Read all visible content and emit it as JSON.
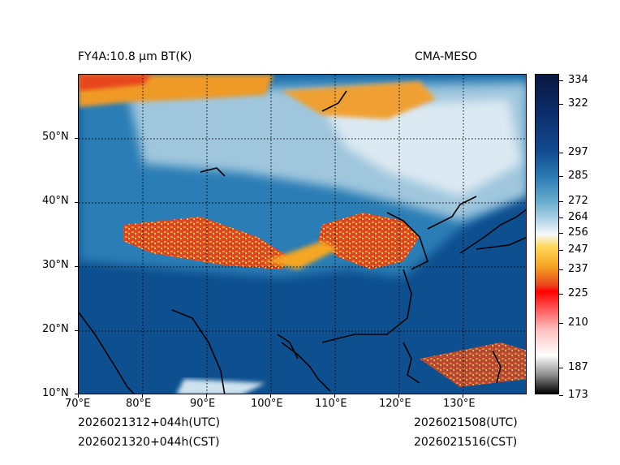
{
  "header": {
    "title_left": "FY4A:10.8 µm BT(K)",
    "title_right": "CMA-MESO"
  },
  "footer": {
    "init_utc": "2026021312+044h(UTC)",
    "init_cst": "2026021320+044h(CST)",
    "valid_utc": "2026021508(UTC)",
    "valid_cst": "2026021516(CST)"
  },
  "chart_data": {
    "type": "heatmap",
    "title": "FY4A:10.8 µm BT(K)",
    "x_axis": {
      "label": "",
      "range": [
        70,
        140
      ],
      "unit": "degE",
      "ticks": [
        "70°E",
        "80°E",
        "90°E",
        "100°E",
        "110°E",
        "120°E",
        "130°E"
      ]
    },
    "y_axis": {
      "label": "",
      "range": [
        10,
        60
      ],
      "unit": "degN",
      "ticks": [
        "10°N",
        "20°N",
        "30°N",
        "40°N",
        "50°N"
      ]
    },
    "grid": true,
    "colorbar": {
      "unit": "K",
      "range": [
        173,
        340
      ],
      "ticks": [
        "173",
        "187",
        "210",
        "225",
        "237",
        "247",
        "256",
        "264",
        "272",
        "285",
        "297",
        "322",
        "334"
      ]
    }
  },
  "colors": {
    "ocean": "#0c4a8a",
    "land_warm": "#1d6fa8",
    "cold_cloud": "#e8451c",
    "high_cloud": "#f5a623",
    "thin_cloud": "#cfe3ef"
  }
}
